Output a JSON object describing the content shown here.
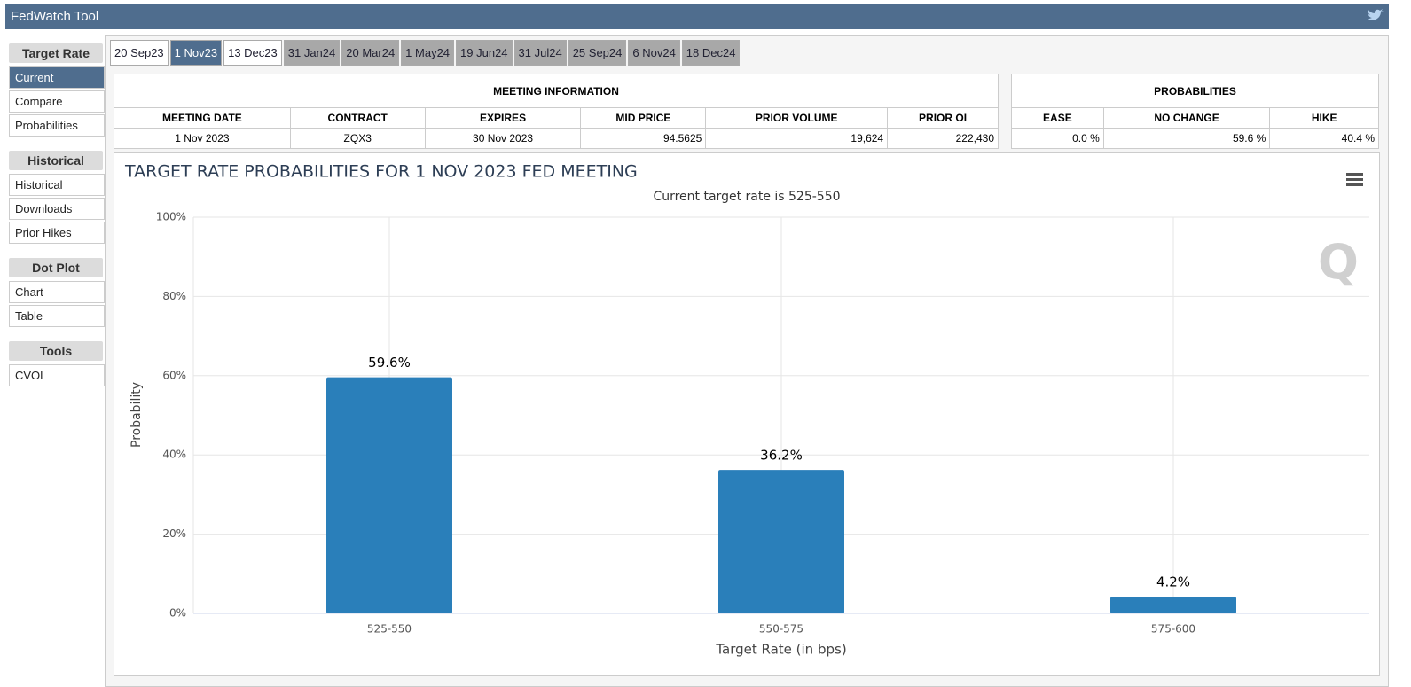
{
  "header": {
    "title": "FedWatch Tool"
  },
  "sidebar": {
    "sections": [
      {
        "title": "Target Rate",
        "items": [
          "Current",
          "Compare",
          "Probabilities"
        ]
      },
      {
        "title": "Historical",
        "items": [
          "Historical",
          "Downloads",
          "Prior Hikes"
        ]
      },
      {
        "title": "Dot Plot",
        "items": [
          "Chart",
          "Table"
        ]
      },
      {
        "title": "Tools",
        "items": [
          "CVOL"
        ]
      }
    ]
  },
  "tabs": [
    "20 Sep23",
    "1 Nov23",
    "13 Dec23",
    "31 Jan24",
    "20 Mar24",
    "1 May24",
    "19 Jun24",
    "31 Jul24",
    "25 Sep24",
    "6 Nov24",
    "18 Dec24"
  ],
  "meeting_info": {
    "title": "MEETING INFORMATION",
    "columns": [
      "MEETING DATE",
      "CONTRACT",
      "EXPIRES",
      "MID PRICE",
      "PRIOR VOLUME",
      "PRIOR OI"
    ],
    "row": [
      "1 Nov 2023",
      "ZQX3",
      "30 Nov 2023",
      "94.5625",
      "19,624",
      "222,430"
    ]
  },
  "probabilities": {
    "title": "PROBABILITIES",
    "columns": [
      "EASE",
      "NO CHANGE",
      "HIKE"
    ],
    "row": [
      "0.0 %",
      "59.6 %",
      "40.4 %"
    ]
  },
  "chart_data": {
    "type": "bar",
    "title": "TARGET RATE PROBABILITIES FOR 1 NOV 2023 FED MEETING",
    "subtitle": "Current target rate is 525-550",
    "x_label": "Target Rate (in bps)",
    "y_label": "Probability",
    "categories": [
      "525-550",
      "550-575",
      "575-600"
    ],
    "values": [
      59.6,
      36.2,
      4.2
    ],
    "value_labels": [
      "59.6%",
      "36.2%",
      "4.2%"
    ],
    "color": "#2a7fba",
    "ylim": [
      0,
      100
    ],
    "yticks": [
      {
        "value": 0,
        "label": "0%"
      },
      {
        "value": 20,
        "label": "20%"
      },
      {
        "value": 40,
        "label": "40%"
      },
      {
        "value": 60,
        "label": "60%"
      },
      {
        "value": 80,
        "label": "80%"
      },
      {
        "value": 100,
        "label": "100%"
      }
    ],
    "grid": true
  }
}
